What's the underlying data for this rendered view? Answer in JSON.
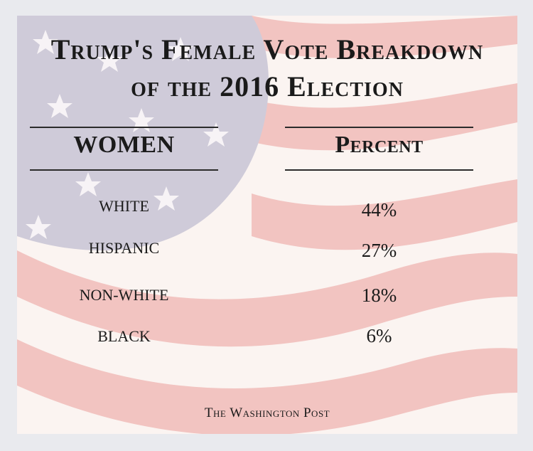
{
  "colors": {
    "background": "#e9eaee",
    "stripe_red": "#f3c9c6",
    "stripe_white": "#fbf4f1",
    "canton_blue": "#c9c6d6",
    "text": "#1b1b1b"
  },
  "chart_data": {
    "type": "table",
    "title": "Trump's Female Vote Breakdown",
    "subtitle": "of the 2016 Election",
    "columns": [
      "WOMEN",
      "Percent"
    ],
    "categories": [
      "WHITE",
      "HISPANIC",
      "NON-WHITE",
      "BLACK"
    ],
    "values": [
      "44%",
      "27%",
      "18%",
      "6%"
    ],
    "source": "The Washington Post"
  }
}
